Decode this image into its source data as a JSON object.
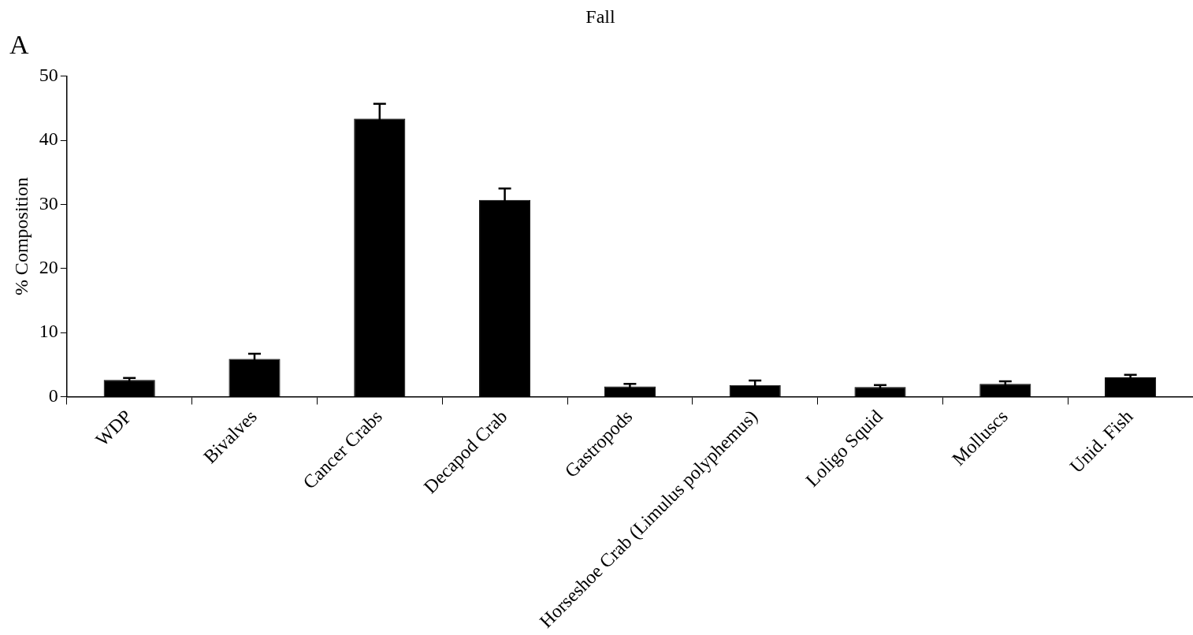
{
  "chart_data": {
    "type": "bar",
    "title": "Fall",
    "ylabel": "% Composition",
    "categories": [
      "WDP",
      "Bivalves",
      "Cancer Crabs",
      "Decapod Crab",
      "Gastropods",
      "Horseshoe Crab (Limulus polyphemus)",
      "Loligo Squid",
      "Molluscs",
      "Unid. Fish"
    ],
    "values": [
      2.6,
      5.9,
      43.4,
      30.7,
      1.6,
      1.8,
      1.5,
      2.0,
      3.0
    ],
    "errors": [
      0.3,
      0.8,
      2.3,
      1.8,
      0.4,
      0.7,
      0.3,
      0.4,
      0.4
    ],
    "color": "#000000",
    "ylim": [
      0,
      50
    ],
    "yticks": [
      0,
      10,
      20,
      30,
      40,
      50
    ],
    "grid": false,
    "legend": false,
    "annotations": [
      "A"
    ]
  }
}
